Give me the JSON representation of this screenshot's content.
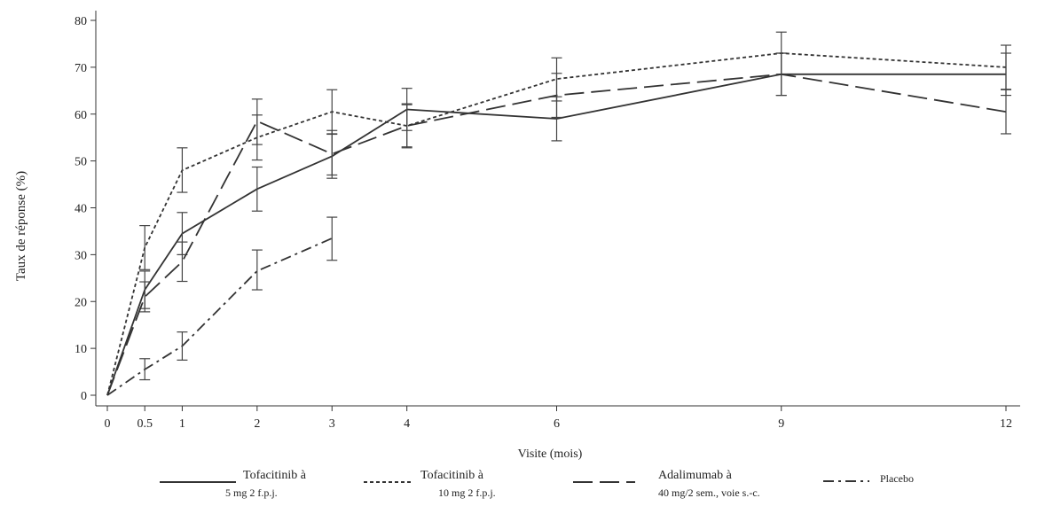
{
  "chart_data": {
    "type": "line",
    "title": "",
    "xlabel": "Visite (mois)",
    "ylabel": "Taux de réponse (%)",
    "x_ticks": [
      0,
      0.5,
      1,
      2,
      3,
      4,
      6,
      9,
      12
    ],
    "x_tick_labels": [
      "0",
      "0.5",
      "1",
      "2",
      "3",
      "4",
      "6",
      "9",
      "12"
    ],
    "y_ticks": [
      0,
      10,
      20,
      30,
      40,
      50,
      60,
      70,
      80
    ],
    "xlim": [
      0,
      12.3
    ],
    "ylim": [
      0,
      80
    ],
    "x_scale": "linear",
    "grid": false,
    "legend_position": "bottom",
    "series": [
      {
        "name_lines": [
          "Tofacitinib  à",
          "5 mg 2 f.p.j."
        ],
        "line_style": "solid",
        "color": "#333333",
        "points": [
          {
            "x": 0,
            "y": 0
          },
          {
            "x": 0.5,
            "y": 22.5,
            "lo": 18.5,
            "hi": 26.5
          },
          {
            "x": 1,
            "y": 34.5,
            "lo": 30.0,
            "hi": 39.0
          },
          {
            "x": 2,
            "y": 44.0,
            "lo": 39.3,
            "hi": 48.7
          },
          {
            "x": 3,
            "y": 51.0,
            "lo": 46.3,
            "hi": 55.7
          },
          {
            "x": 4,
            "y": 61.0,
            "lo": 56.5,
            "hi": 65.5
          },
          {
            "x": 6,
            "y": 59.0,
            "lo": 54.3,
            "hi": 63.7
          },
          {
            "x": 9,
            "y": 68.5,
            "lo": 64.0,
            "hi": 73.0
          },
          {
            "x": 12,
            "y": 68.5,
            "lo": 64.0,
            "hi": 73.0
          }
        ]
      },
      {
        "name_lines": [
          "Tofacitinib  à",
          "10 mg 2 f.p.j."
        ],
        "line_style": "dotted",
        "color": "#333333",
        "points": [
          {
            "x": 0,
            "y": 0
          },
          {
            "x": 0.5,
            "y": 31.5,
            "lo": 26.8,
            "hi": 36.2
          },
          {
            "x": 1,
            "y": 48.0,
            "lo": 43.3,
            "hi": 52.8
          },
          {
            "x": 2,
            "y": 55.0,
            "lo": 50.2,
            "hi": 59.8
          },
          {
            "x": 3,
            "y": 60.5,
            "lo": 55.8,
            "hi": 65.2
          },
          {
            "x": 4,
            "y": 57.5,
            "lo": 52.8,
            "hi": 62.2
          },
          {
            "x": 6,
            "y": 67.5,
            "lo": 62.8,
            "hi": 72.0
          },
          {
            "x": 9,
            "y": 73.0,
            "lo": 68.5,
            "hi": 77.5
          },
          {
            "x": 12,
            "y": 70.0,
            "lo": 65.3,
            "hi": 74.7
          }
        ]
      },
      {
        "name_lines": [
          "Adalimumab à",
          "40 mg/2 sem., voie s.-c."
        ],
        "line_style": "long-dash",
        "color": "#333333",
        "points": [
          {
            "x": 0,
            "y": 0
          },
          {
            "x": 0.5,
            "y": 21.0,
            "lo": 17.8,
            "hi": 24.2
          },
          {
            "x": 1,
            "y": 28.5,
            "lo": 24.3,
            "hi": 32.7
          },
          {
            "x": 2,
            "y": 58.5,
            "lo": 53.5,
            "hi": 63.2
          },
          {
            "x": 3,
            "y": 51.5,
            "lo": 47.0,
            "hi": 56.5
          },
          {
            "x": 4,
            "y": 57.5,
            "lo": 53.0,
            "hi": 62.0
          },
          {
            "x": 6,
            "y": 64.0,
            "lo": 59.3,
            "hi": 68.7
          },
          {
            "x": 9,
            "y": 68.5,
            "lo": 64.0,
            "hi": 73.0
          },
          {
            "x": 12,
            "y": 60.5,
            "lo": 55.8,
            "hi": 65.2
          }
        ]
      },
      {
        "name_lines": [
          "Placebo"
        ],
        "line_style": "dash-dot",
        "color": "#333333",
        "points": [
          {
            "x": 0,
            "y": 0
          },
          {
            "x": 0.5,
            "y": 5.5,
            "lo": 3.3,
            "hi": 7.8
          },
          {
            "x": 1,
            "y": 10.5,
            "lo": 7.5,
            "hi": 13.5
          },
          {
            "x": 2,
            "y": 26.5,
            "lo": 22.5,
            "hi": 31.0
          },
          {
            "x": 3,
            "y": 33.5,
            "lo": 28.8,
            "hi": 38.0
          }
        ]
      }
    ]
  }
}
